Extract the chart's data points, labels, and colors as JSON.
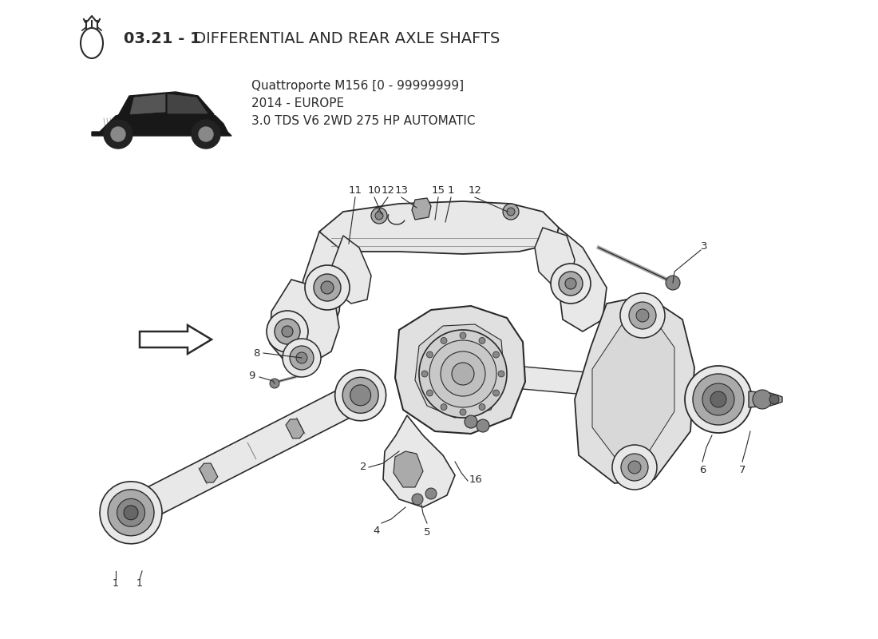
{
  "title_part1": "03.21 - 1",
  "title_part2": " DIFFERENTIAL AND REAR AXLE SHAFTS",
  "car_model": "Quattroporte M156 [0 - 99999999]",
  "car_year": "2014 - EUROPE",
  "car_spec": "3.0 TDS V6 2WD 275 HP AUTOMATIC",
  "bg_color": "#ffffff",
  "lc": "#2a2a2a",
  "gray1": "#cccccc",
  "gray2": "#aaaaaa",
  "gray3": "#888888",
  "gray4": "#666666",
  "gray5": "#e8e8e8"
}
